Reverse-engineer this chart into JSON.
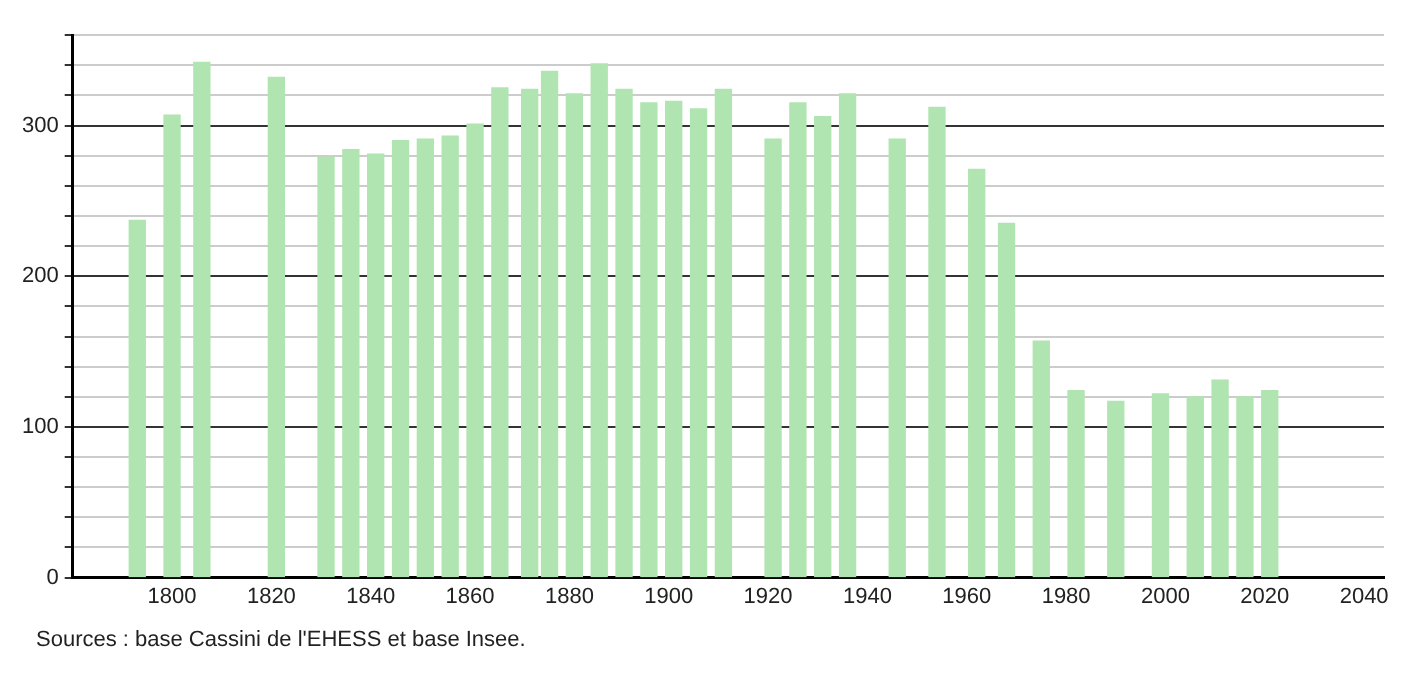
{
  "chart_data": {
    "type": "bar",
    "x": [
      1793,
      1800,
      1806,
      1821,
      1831,
      1836,
      1841,
      1846,
      1851,
      1856,
      1861,
      1866,
      1872,
      1876,
      1881,
      1886,
      1891,
      1896,
      1901,
      1906,
      1911,
      1921,
      1926,
      1931,
      1936,
      1946,
      1954,
      1962,
      1968,
      1975,
      1982,
      1990,
      1999,
      2006,
      2011,
      2016,
      2021
    ],
    "values": [
      237,
      307,
      342,
      332,
      279,
      284,
      281,
      290,
      291,
      293,
      301,
      325,
      324,
      336,
      321,
      341,
      324,
      315,
      316,
      311,
      324,
      291,
      315,
      306,
      321,
      291,
      312,
      271,
      235,
      157,
      124,
      117,
      122,
      120,
      131,
      120,
      124
    ],
    "color": "#b0e4b0",
    "xlim": [
      1780,
      2044
    ],
    "xticks": [
      1800,
      1820,
      1840,
      1860,
      1880,
      1900,
      1920,
      1940,
      1960,
      1980,
      2000,
      2020,
      2040
    ],
    "ylim": [
      0,
      360
    ],
    "yticks": [
      0,
      {
        "value": 20,
        "label": null
      },
      {
        "value": 40,
        "label": null
      },
      {
        "value": 60,
        "label": null
      },
      {
        "value": 80,
        "label": null
      },
      100,
      {
        "value": 120,
        "label": null
      },
      {
        "value": 140,
        "label": null
      },
      {
        "value": 160,
        "label": null
      },
      {
        "value": 180,
        "label": null
      },
      200,
      {
        "value": 220,
        "label": null
      },
      {
        "value": 240,
        "label": null
      },
      {
        "value": 260,
        "label": null
      },
      {
        "value": 280,
        "label": null
      },
      300,
      {
        "value": 320,
        "label": null
      },
      {
        "value": 340,
        "label": null
      },
      {
        "value": 360,
        "label": null
      }
    ],
    "grid": "y",
    "legend": false,
    "annotations": [
      "Sources : base Cassini de l'EHESS et base Insee."
    ]
  }
}
